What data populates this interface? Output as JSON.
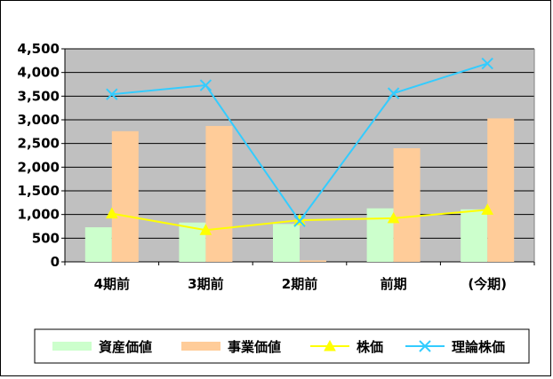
{
  "chart_data": {
    "type": "bar",
    "title": "",
    "xlabel": "",
    "ylabel": "",
    "categories": [
      "4期前",
      "3期前",
      "2期前",
      "前期",
      "(今期)"
    ],
    "ylim": [
      0,
      4500
    ],
    "yticks": [
      0,
      500,
      1000,
      1500,
      2000,
      2500,
      3000,
      3500,
      4000,
      4500
    ],
    "ytick_labels": [
      "0",
      "500",
      "1,000",
      "1,500",
      "2,000",
      "2,500",
      "3,000",
      "3,500",
      "4,000",
      "4,500"
    ],
    "grid": true,
    "legend_position": "bottom",
    "series": [
      {
        "name": "資産価値",
        "kind": "bar",
        "color": "#ccffcc",
        "values": [
          730,
          830,
          800,
          1130,
          1110
        ]
      },
      {
        "name": "事業価値",
        "kind": "bar",
        "color": "#ffcc99",
        "values": [
          2760,
          2870,
          30,
          2400,
          3030
        ]
      },
      {
        "name": "株価",
        "kind": "line",
        "marker": "triangle",
        "color": "#ffff00",
        "values": [
          1020,
          670,
          880,
          920,
          1100
        ]
      },
      {
        "name": "理論株価",
        "kind": "line",
        "marker": "x",
        "color": "#33ccff",
        "values": [
          3540,
          3730,
          860,
          3560,
          4190
        ]
      }
    ]
  }
}
